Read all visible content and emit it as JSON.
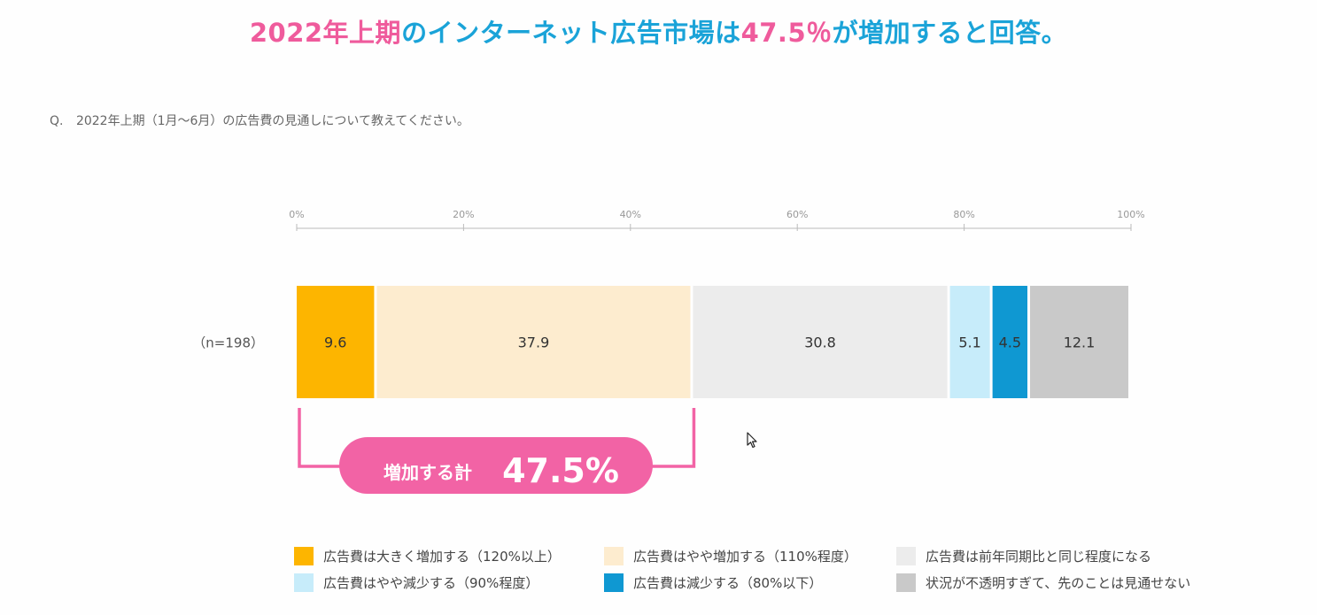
{
  "headline": {
    "parts": [
      {
        "text": "2022年上期",
        "color": "#ef5b9c"
      },
      {
        "text": "のインターネット広告市場は",
        "color": "#1aa3d8"
      },
      {
        "text": "47.5％",
        "color": "#ef5b9c"
      },
      {
        "text": "が増加すると回答。",
        "color": "#1aa3d8"
      }
    ]
  },
  "question": {
    "mark": "Q.",
    "text": "2022年上期（1月～6月）の広告費の見通しについて教えてください。"
  },
  "chart_data": {
    "type": "bar",
    "orientation": "horizontal",
    "stacked": true,
    "categories": [
      "（n=198）"
    ],
    "axis": {
      "ticks": [
        "0%",
        "20%",
        "40%",
        "60%",
        "80%",
        "100%"
      ],
      "range": [
        0,
        100
      ]
    },
    "series": [
      {
        "name": "広告費は大きく増加する（120%以上）",
        "values": [
          9.6
        ],
        "label": "9.6",
        "color": "#fdb500",
        "text_color": "#333333"
      },
      {
        "name": "広告費はやや増加する（110%程度）",
        "values": [
          37.9
        ],
        "label": "37.9",
        "color": "#fdeccf",
        "text_color": "#333333"
      },
      {
        "name": "広告費は前年同期比と同じ程度になる",
        "values": [
          30.8
        ],
        "label": "30.8",
        "color": "#ececec",
        "text_color": "#333333"
      },
      {
        "name": "広告費はやや減少する（90%程度）",
        "values": [
          5.1
        ],
        "label": "5.1",
        "color": "#c7ecfa",
        "text_color": "#333333"
      },
      {
        "name": "広告費は減少する（80%以下）",
        "values": [
          4.5
        ],
        "label": "4.5",
        "color": "#0f98d2",
        "text_color": "#333333"
      },
      {
        "name": "状況が不透明すぎて、先のことは見通せない",
        "values": [
          12.1
        ],
        "label": "12.1",
        "color": "#c9c9c9",
        "text_color": "#333333"
      }
    ],
    "annotation": {
      "label": "増加する計",
      "value": "47.5%",
      "spans_series": [
        0,
        1
      ],
      "color": "#f263a5"
    }
  }
}
